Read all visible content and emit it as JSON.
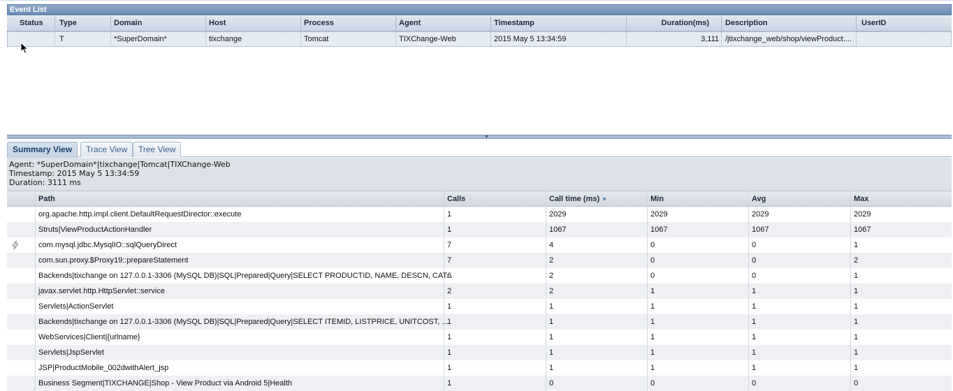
{
  "event_list": {
    "title": "Event List",
    "columns": [
      "Status",
      "Type",
      "Domain",
      "Host",
      "Process",
      "Agent",
      "Timestamp",
      "Duration(ms)",
      "Description",
      "UserID"
    ],
    "rows": [
      {
        "status": "",
        "type": "T",
        "domain": "*SuperDomain*",
        "host": "tixchange",
        "process": "Tomcat",
        "agent": "TIXChange-Web",
        "timestamp": "2015 May 5 13:34:59",
        "duration": "3,111",
        "description": "/jtixchange_web/shop/viewProduct....",
        "userid": ""
      }
    ]
  },
  "tabs": [
    {
      "label": "Summary View",
      "active": true
    },
    {
      "label": "Trace View",
      "active": false
    },
    {
      "label": "Tree View",
      "active": false
    }
  ],
  "info": {
    "agent": "Agent: *SuperDomain*|tixchange|Tomcat|TIXChange-Web",
    "timestamp": "Timestamp: 2015 May 5 13:34:59",
    "duration": "Duration: 3111 ms"
  },
  "summary": {
    "columns": {
      "path": "Path",
      "calls": "Calls",
      "call_time": "Call time (ms)",
      "min": "Min",
      "avg": "Avg",
      "max": "Max"
    },
    "sorted_by": "Call time (ms)",
    "rows": [
      {
        "icon": "",
        "path": "org.apache.http.impl.client.DefaultRequestDirector::execute",
        "calls": "1",
        "call_time": "2029",
        "min": "2029",
        "avg": "2029",
        "max": "2029"
      },
      {
        "icon": "",
        "path": "Struts|ViewProductActionHandler",
        "calls": "1",
        "call_time": "1067",
        "min": "1067",
        "avg": "1067",
        "max": "1067"
      },
      {
        "icon": "lightning-icon",
        "path": "com.mysql.jdbc.MysqlIO::sqlQueryDirect",
        "calls": "7",
        "call_time": "4",
        "min": "0",
        "avg": "0",
        "max": "1"
      },
      {
        "icon": "",
        "path": "com.sun.proxy.$Proxy19::prepareStatement",
        "calls": "7",
        "call_time": "2",
        "min": "0",
        "avg": "0",
        "max": "2"
      },
      {
        "icon": "",
        "path": "Backends|tixchange on 127.0.0.1-3306 (MySQL DB)|SQL|Prepared|Query|SELECT PRODUCTID, NAME, DESCN, CAT...",
        "calls": "6",
        "call_time": "2",
        "min": "0",
        "avg": "0",
        "max": "1"
      },
      {
        "icon": "",
        "path": "javax.servlet.http.HttpServlet::service",
        "calls": "2",
        "call_time": "2",
        "min": "1",
        "avg": "1",
        "max": "1"
      },
      {
        "icon": "",
        "path": "Servlets|ActionServlet",
        "calls": "1",
        "call_time": "1",
        "min": "1",
        "avg": "1",
        "max": "1"
      },
      {
        "icon": "",
        "path": "Backends|tixchange on 127.0.0.1-3306 (MySQL DB)|SQL|Prepared|Query|SELECT ITEMID, LISTPRICE, UNITCOST, ...",
        "calls": "1",
        "call_time": "1",
        "min": "1",
        "avg": "1",
        "max": "1"
      },
      {
        "icon": "",
        "path": "WebServices|Client|{urlname}",
        "calls": "1",
        "call_time": "1",
        "min": "1",
        "avg": "1",
        "max": "1"
      },
      {
        "icon": "",
        "path": "Servlets|JspServlet",
        "calls": "1",
        "call_time": "1",
        "min": "1",
        "avg": "1",
        "max": "1"
      },
      {
        "icon": "",
        "path": "JSP|ProductMobile_002dwithAlert_jsp",
        "calls": "1",
        "call_time": "1",
        "min": "1",
        "avg": "1",
        "max": "1"
      },
      {
        "icon": "",
        "path": "Business Segment|TIXCHANGE|Shop - View Product via Android 5|Health",
        "calls": "1",
        "call_time": "0",
        "min": "0",
        "avg": "0",
        "max": "0"
      }
    ]
  }
}
